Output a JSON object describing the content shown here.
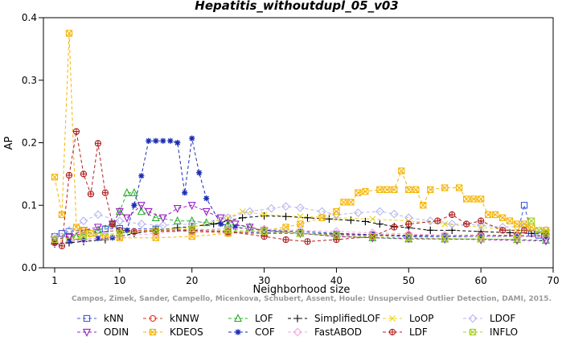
{
  "chart_data": {
    "type": "line",
    "title": "Hepatitis_withoutdupl_05_v03",
    "xlabel": "Neighborhood size",
    "ylabel": "AP",
    "xlim": [
      0,
      70
    ],
    "ylim": [
      0,
      0.4
    ],
    "xticks": [
      1,
      10,
      20,
      30,
      40,
      50,
      60,
      70
    ],
    "yticks": [
      0.0,
      0.1,
      0.2,
      0.3,
      0.4
    ],
    "xtick_labels": [
      "1",
      "10",
      "20",
      "30",
      "40",
      "50",
      "60",
      "70"
    ],
    "ytick_labels": [
      "0.0",
      "0.1",
      "0.2",
      "0.3",
      "0.4"
    ],
    "grid": false,
    "legend_position": "bottom",
    "credit": "Campos, Zimek, Sander, Campello, Micenkova, Schubert, Assent, Houle: Unsupervised Outlier Detection, DAMI, 2015.",
    "series": [
      {
        "name": "kNN",
        "color": "#3b5bd6",
        "marker": "square",
        "points": [
          [
            1,
            0.05
          ],
          [
            2,
            0.055
          ],
          [
            3,
            0.058
          ],
          [
            5,
            0.06
          ],
          [
            8,
            0.062
          ],
          [
            10,
            0.063
          ],
          [
            15,
            0.062
          ],
          [
            20,
            0.06
          ],
          [
            25,
            0.058
          ],
          [
            30,
            0.056
          ],
          [
            35,
            0.055
          ],
          [
            40,
            0.053
          ],
          [
            45,
            0.052
          ],
          [
            50,
            0.051
          ],
          [
            55,
            0.05
          ],
          [
            60,
            0.05
          ],
          [
            65,
            0.052
          ],
          [
            66,
            0.1
          ],
          [
            67,
            0.055
          ],
          [
            68,
            0.052
          ],
          [
            69,
            0.05
          ]
        ]
      },
      {
        "name": "kNNW",
        "color": "#d23b2c",
        "marker": "circle",
        "points": [
          [
            1,
            0.045
          ],
          [
            3,
            0.05
          ],
          [
            5,
            0.055
          ],
          [
            10,
            0.06
          ],
          [
            15,
            0.06
          ],
          [
            20,
            0.058
          ],
          [
            25,
            0.056
          ],
          [
            30,
            0.055
          ],
          [
            35,
            0.055
          ],
          [
            40,
            0.054
          ],
          [
            45,
            0.053
          ],
          [
            50,
            0.052
          ],
          [
            55,
            0.052
          ],
          [
            60,
            0.052
          ],
          [
            65,
            0.052
          ],
          [
            69,
            0.05
          ]
        ]
      },
      {
        "name": "LOF",
        "color": "#28b028",
        "marker": "triangle",
        "points": [
          [
            1,
            0.045
          ],
          [
            4,
            0.05
          ],
          [
            7,
            0.06
          ],
          [
            9,
            0.07
          ],
          [
            10,
            0.09
          ],
          [
            11,
            0.12
          ],
          [
            12,
            0.12
          ],
          [
            13,
            0.09
          ],
          [
            15,
            0.08
          ],
          [
            18,
            0.075
          ],
          [
            20,
            0.075
          ],
          [
            22,
            0.072
          ],
          [
            25,
            0.07
          ],
          [
            28,
            0.065
          ],
          [
            30,
            0.06
          ],
          [
            35,
            0.055
          ],
          [
            40,
            0.05
          ],
          [
            45,
            0.048
          ],
          [
            50,
            0.046
          ],
          [
            55,
            0.046
          ],
          [
            60,
            0.046
          ],
          [
            65,
            0.045
          ],
          [
            69,
            0.044
          ]
        ]
      },
      {
        "name": "SimplifiedLOF",
        "color": "#000000",
        "marker": "plus",
        "points": [
          [
            1,
            0.038
          ],
          [
            3,
            0.04
          ],
          [
            5,
            0.042
          ],
          [
            8,
            0.045
          ],
          [
            10,
            0.05
          ],
          [
            12,
            0.055
          ],
          [
            15,
            0.06
          ],
          [
            18,
            0.064
          ],
          [
            20,
            0.066
          ],
          [
            23,
            0.07
          ],
          [
            25,
            0.075
          ],
          [
            27,
            0.08
          ],
          [
            30,
            0.083
          ],
          [
            33,
            0.082
          ],
          [
            36,
            0.08
          ],
          [
            39,
            0.078
          ],
          [
            42,
            0.076
          ],
          [
            44,
            0.074
          ],
          [
            46,
            0.07
          ],
          [
            48,
            0.066
          ],
          [
            50,
            0.064
          ],
          [
            53,
            0.06
          ],
          [
            56,
            0.06
          ],
          [
            60,
            0.058
          ],
          [
            64,
            0.056
          ],
          [
            67,
            0.055
          ],
          [
            69,
            0.054
          ]
        ]
      },
      {
        "name": "LoOP",
        "color": "#e8d21e",
        "marker": "x",
        "points": [
          [
            1,
            0.042
          ],
          [
            5,
            0.048
          ],
          [
            10,
            0.055
          ],
          [
            15,
            0.06
          ],
          [
            20,
            0.065
          ],
          [
            25,
            0.08
          ],
          [
            27,
            0.09
          ],
          [
            30,
            0.085
          ],
          [
            35,
            0.082
          ],
          [
            40,
            0.08
          ],
          [
            45,
            0.078
          ],
          [
            50,
            0.075
          ],
          [
            55,
            0.07
          ],
          [
            60,
            0.065
          ],
          [
            65,
            0.06
          ],
          [
            69,
            0.058
          ]
        ]
      },
      {
        "name": "LDOF",
        "color": "#b7b7ef",
        "marker": "diamond",
        "points": [
          [
            1,
            0.05
          ],
          [
            3,
            0.06
          ],
          [
            5,
            0.075
          ],
          [
            7,
            0.085
          ],
          [
            10,
            0.075
          ],
          [
            13,
            0.07
          ],
          [
            16,
            0.068
          ],
          [
            20,
            0.07
          ],
          [
            25,
            0.08
          ],
          [
            28,
            0.09
          ],
          [
            31,
            0.095
          ],
          [
            33,
            0.098
          ],
          [
            35,
            0.096
          ],
          [
            38,
            0.09
          ],
          [
            40,
            0.085
          ],
          [
            43,
            0.088
          ],
          [
            46,
            0.09
          ],
          [
            48,
            0.086
          ],
          [
            50,
            0.08
          ],
          [
            53,
            0.075
          ],
          [
            56,
            0.07
          ],
          [
            60,
            0.068
          ],
          [
            63,
            0.065
          ],
          [
            66,
            0.066
          ],
          [
            69,
            0.06
          ]
        ]
      },
      {
        "name": "ODIN",
        "color": "#9a1fc4",
        "marker": "triangle-down",
        "points": [
          [
            1,
            0.045
          ],
          [
            3,
            0.05
          ],
          [
            5,
            0.06
          ],
          [
            7,
            0.065
          ],
          [
            9,
            0.07
          ],
          [
            10,
            0.09
          ],
          [
            11,
            0.08
          ],
          [
            13,
            0.1
          ],
          [
            14,
            0.09
          ],
          [
            16,
            0.08
          ],
          [
            18,
            0.095
          ],
          [
            20,
            0.1
          ],
          [
            22,
            0.09
          ],
          [
            24,
            0.08
          ],
          [
            26,
            0.07
          ],
          [
            28,
            0.065
          ],
          [
            30,
            0.06
          ],
          [
            35,
            0.055
          ],
          [
            40,
            0.05
          ],
          [
            45,
            0.048
          ],
          [
            50,
            0.047
          ],
          [
            55,
            0.046
          ],
          [
            60,
            0.045
          ],
          [
            65,
            0.044
          ],
          [
            69,
            0.043
          ]
        ]
      },
      {
        "name": "KDEOS",
        "color": "#f5b400",
        "marker": "square-x",
        "points": [
          [
            1,
            0.145
          ],
          [
            2,
            0.085
          ],
          [
            3,
            0.375
          ],
          [
            4,
            0.065
          ],
          [
            5,
            0.06
          ],
          [
            6,
            0.055
          ],
          [
            8,
            0.05
          ],
          [
            10,
            0.048
          ],
          [
            15,
            0.048
          ],
          [
            20,
            0.05
          ],
          [
            25,
            0.055
          ],
          [
            30,
            0.06
          ],
          [
            33,
            0.065
          ],
          [
            35,
            0.07
          ],
          [
            38,
            0.08
          ],
          [
            40,
            0.09
          ],
          [
            41,
            0.105
          ],
          [
            42,
            0.105
          ],
          [
            43,
            0.12
          ],
          [
            44,
            0.122
          ],
          [
            46,
            0.125
          ],
          [
            47,
            0.125
          ],
          [
            48,
            0.125
          ],
          [
            49,
            0.155
          ],
          [
            50,
            0.125
          ],
          [
            51,
            0.125
          ],
          [
            52,
            0.1
          ],
          [
            53,
            0.125
          ],
          [
            55,
            0.128
          ],
          [
            57,
            0.128
          ],
          [
            58,
            0.11
          ],
          [
            59,
            0.11
          ],
          [
            60,
            0.11
          ],
          [
            61,
            0.085
          ],
          [
            62,
            0.085
          ],
          [
            63,
            0.08
          ],
          [
            64,
            0.075
          ],
          [
            65,
            0.07
          ],
          [
            66,
            0.07
          ],
          [
            67,
            0.065
          ],
          [
            69,
            0.06
          ]
        ]
      },
      {
        "name": "COF",
        "color": "#1a2eb5",
        "marker": "star",
        "points": [
          [
            1,
            0.04
          ],
          [
            3,
            0.042
          ],
          [
            5,
            0.045
          ],
          [
            7,
            0.047
          ],
          [
            9,
            0.048
          ],
          [
            11,
            0.06
          ],
          [
            12,
            0.1
          ],
          [
            13,
            0.147
          ],
          [
            14,
            0.203
          ],
          [
            15,
            0.203
          ],
          [
            16,
            0.203
          ],
          [
            17,
            0.203
          ],
          [
            18,
            0.2
          ],
          [
            19,
            0.12
          ],
          [
            20,
            0.207
          ],
          [
            21,
            0.152
          ],
          [
            22,
            0.111
          ],
          [
            24,
            0.07
          ],
          [
            26,
            0.065
          ],
          [
            30,
            0.06
          ],
          [
            35,
            0.058
          ],
          [
            40,
            0.055
          ],
          [
            45,
            0.053
          ],
          [
            50,
            0.05
          ],
          [
            55,
            0.05
          ],
          [
            60,
            0.05
          ],
          [
            65,
            0.05
          ],
          [
            69,
            0.05
          ]
        ]
      },
      {
        "name": "FastABOD",
        "color": "#f3a6e0",
        "marker": "diamond",
        "points": [
          [
            1,
            0.04
          ],
          [
            5,
            0.045
          ],
          [
            10,
            0.05
          ],
          [
            15,
            0.055
          ],
          [
            20,
            0.06
          ],
          [
            25,
            0.063
          ],
          [
            30,
            0.062
          ],
          [
            35,
            0.06
          ],
          [
            40,
            0.058
          ],
          [
            45,
            0.056
          ],
          [
            50,
            0.054
          ],
          [
            55,
            0.052
          ],
          [
            60,
            0.05
          ],
          [
            65,
            0.05
          ],
          [
            69,
            0.05
          ]
        ]
      },
      {
        "name": "LDF",
        "color": "#b02020",
        "marker": "circle-plus",
        "points": [
          [
            1,
            0.04
          ],
          [
            2,
            0.035
          ],
          [
            3,
            0.148
          ],
          [
            4,
            0.218
          ],
          [
            5,
            0.15
          ],
          [
            6,
            0.118
          ],
          [
            7,
            0.199
          ],
          [
            8,
            0.12
          ],
          [
            9,
            0.07
          ],
          [
            10,
            0.06
          ],
          [
            12,
            0.058
          ],
          [
            15,
            0.058
          ],
          [
            20,
            0.06
          ],
          [
            25,
            0.058
          ],
          [
            30,
            0.05
          ],
          [
            33,
            0.045
          ],
          [
            36,
            0.042
          ],
          [
            40,
            0.045
          ],
          [
            45,
            0.05
          ],
          [
            48,
            0.065
          ],
          [
            50,
            0.07
          ],
          [
            54,
            0.075
          ],
          [
            56,
            0.085
          ],
          [
            58,
            0.07
          ],
          [
            60,
            0.075
          ],
          [
            63,
            0.06
          ],
          [
            66,
            0.06
          ],
          [
            69,
            0.055
          ]
        ]
      },
      {
        "name": "INFLO",
        "color": "#a8d120",
        "marker": "square-x",
        "points": [
          [
            1,
            0.045
          ],
          [
            5,
            0.05
          ],
          [
            10,
            0.055
          ],
          [
            15,
            0.06
          ],
          [
            20,
            0.062
          ],
          [
            25,
            0.06
          ],
          [
            30,
            0.058
          ],
          [
            35,
            0.055
          ],
          [
            40,
            0.052
          ],
          [
            45,
            0.05
          ],
          [
            50,
            0.048
          ],
          [
            55,
            0.047
          ],
          [
            60,
            0.046
          ],
          [
            65,
            0.046
          ],
          [
            67,
            0.075
          ],
          [
            68,
            0.06
          ],
          [
            69,
            0.055
          ]
        ]
      }
    ]
  }
}
